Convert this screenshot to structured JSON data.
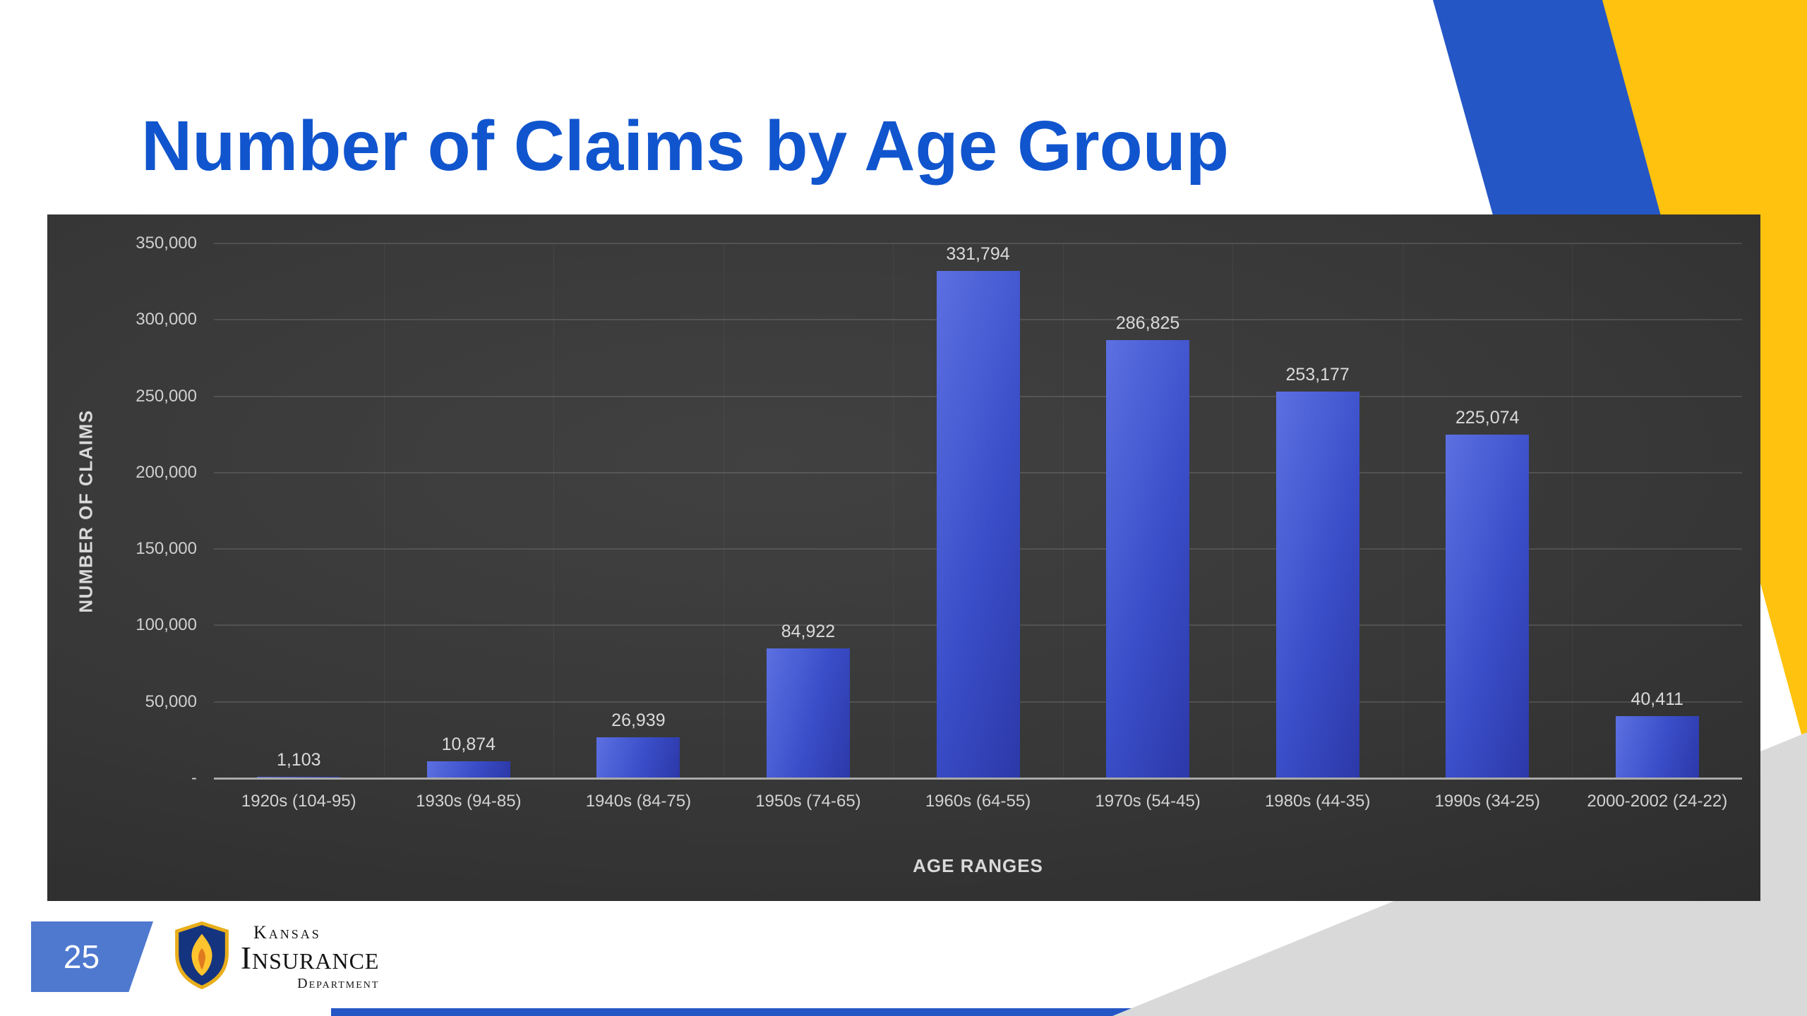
{
  "slide": {
    "title": "Number of Claims by Age Group",
    "page_number": "25",
    "logo": {
      "line1": "Kansas",
      "line2": "Insurance",
      "line3": "Department"
    },
    "colors": {
      "title_blue": "#1155CE",
      "accent_blue": "#2456C6",
      "accent_yellow": "#FFC20E",
      "accent_gray": "#D9D9D9",
      "page_tab_blue": "#4F79CF",
      "bar_blue_light": "#5C70E2",
      "bar_blue_mid": "#3A4EC9",
      "bar_blue_dark": "#2C38A8"
    }
  },
  "chart_data": {
    "type": "bar",
    "title": "Number of Claims by Age Group",
    "xlabel": "AGE RANGES",
    "ylabel": "NUMBER OF CLAIMS",
    "ylim": [
      0,
      350000
    ],
    "grid": true,
    "legend": false,
    "categories": [
      "1920s (104-95)",
      "1930s (94-85)",
      "1940s (84-75)",
      "1950s (74-65)",
      "1960s (64-55)",
      "1970s (54-45)",
      "1980s (44-35)",
      "1990s (34-25)",
      "2000-2002 (24-22)"
    ],
    "values": [
      1103,
      10874,
      26939,
      84922,
      331794,
      286825,
      253177,
      225074,
      40411
    ],
    "value_labels": [
      "1,103",
      "10,874",
      "26,939",
      "84,922",
      "331,794",
      "286,825",
      "253,177",
      "225,074",
      "40,411"
    ],
    "yticks": [
      {
        "value": 350000,
        "label": "350,000"
      },
      {
        "value": 300000,
        "label": "300,000"
      },
      {
        "value": 250000,
        "label": "250,000"
      },
      {
        "value": 200000,
        "label": "200,000"
      },
      {
        "value": 150000,
        "label": "150,000"
      },
      {
        "value": 100000,
        "label": "100,000"
      },
      {
        "value": 50000,
        "label": "50,000"
      },
      {
        "value": 0,
        "label": "-"
      }
    ]
  }
}
